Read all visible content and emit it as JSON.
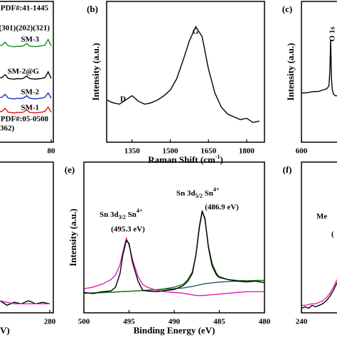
{
  "chart_data": [
    {
      "type": "line",
      "xlim": [
        10,
        80
      ],
      "xticks": [
        80
      ],
      "ylim": [
        0,
        100
      ],
      "x": [
        62,
        63,
        64,
        65,
        66,
        67,
        68,
        69,
        70,
        71,
        72,
        73,
        74,
        75,
        76,
        77,
        78,
        79,
        80
      ],
      "series": [
        {
          "name": "SM-3",
          "color": "#1a8a1a",
          "values": [
            68,
            68.5,
            69,
            71,
            68.5,
            68,
            67.8,
            68.2,
            68,
            68.5,
            70,
            68.3,
            68,
            67.9,
            68.2,
            68.5,
            69,
            73,
            68.4
          ]
        },
        {
          "name": "SM-2@G",
          "color": "#000000",
          "values": [
            45,
            45.5,
            46,
            48,
            45.3,
            45,
            44.8,
            45.2,
            45,
            45.4,
            47,
            45.2,
            45,
            44.8,
            45.1,
            45.3,
            46,
            50,
            45.2
          ]
        },
        {
          "name": "SM-2",
          "color": "#1f2bd6",
          "values": [
            31,
            31.4,
            32,
            34,
            31.3,
            31,
            30.8,
            31.2,
            31,
            31.4,
            33,
            31.2,
            31,
            30.8,
            31.1,
            31.3,
            32,
            35,
            31.2
          ]
        },
        {
          "name": "SM-1",
          "color": "#e01010",
          "values": [
            21,
            21.4,
            22,
            24,
            21.3,
            21,
            20.8,
            21.2,
            21,
            21.4,
            23,
            21.2,
            21,
            20.8,
            21.1,
            21.3,
            22,
            25,
            21.2
          ]
        }
      ],
      "annotations": [
        {
          "text": "PDF#:41-1445"
        },
        {
          "text": ")(301)(202)(321)"
        },
        {
          "text": "PDF#:05-0508"
        },
        {
          "text": "362)"
        }
      ]
    },
    {
      "type": "line",
      "panel_label": "(b)",
      "ylabel": "Intensity (a.u.)",
      "xlabel": {
        "parts": [
          "Raman Shift (cm",
          "-1",
          ")"
        ]
      },
      "xlim": [
        1250,
        1870
      ],
      "xticks": [
        1350,
        1500,
        1650,
        1800
      ],
      "ylim": [
        0,
        100
      ],
      "x": [
        1250,
        1275,
        1300,
        1325,
        1350,
        1375,
        1400,
        1425,
        1450,
        1475,
        1500,
        1525,
        1550,
        1575,
        1600,
        1625,
        1650,
        1675,
        1700,
        1725,
        1750,
        1775,
        1800,
        1825,
        1850
      ],
      "series": [
        {
          "color": "#000000",
          "values": [
            30,
            28,
            27,
            30,
            33,
            29,
            27,
            28,
            30,
            33,
            37,
            45,
            58,
            72,
            82,
            75,
            52,
            35,
            25,
            20,
            18,
            16,
            17,
            14,
            15
          ]
        }
      ],
      "annotations": [
        {
          "text": "D"
        },
        {
          "text": "G"
        }
      ]
    },
    {
      "type": "line",
      "panel_label": "(c)",
      "ylabel": "Intensity (a.u.)",
      "xlim": [
        600,
        516
      ],
      "xticks": [
        600
      ],
      "ylim": [
        0,
        100
      ],
      "x": [
        600,
        590,
        580,
        570,
        560,
        550,
        545,
        540,
        535,
        533,
        531,
        529,
        527,
        524,
        520,
        516
      ],
      "series": [
        {
          "color": "#000000",
          "values": [
            35,
            35,
            35.5,
            36,
            36,
            37,
            37.5,
            38,
            40,
            50,
            73,
            45,
            37,
            34,
            33,
            33
          ]
        }
      ],
      "annotations": [
        {
          "text": "O 1s"
        }
      ]
    },
    {
      "type": "line",
      "xlabel": {
        "parts": [
          "V)"
        ]
      },
      "xlim": [
        320,
        278
      ],
      "xticks": [
        280
      ],
      "ylim": [
        0,
        100
      ],
      "x": [
        320,
        316,
        312,
        308,
        304,
        300,
        296,
        292,
        288,
        284,
        280
      ],
      "series": [
        {
          "color": "#000000",
          "values": [
            7,
            9,
            6,
            8,
            5,
            7,
            6,
            8,
            6,
            7,
            6
          ]
        },
        {
          "color": "#e020c0",
          "values": [
            16,
            13,
            10,
            8,
            7,
            6,
            6,
            6,
            6,
            6,
            6
          ]
        }
      ],
      "annotations": []
    },
    {
      "type": "line",
      "panel_label": "(e)",
      "ylabel": "Intensity (a.u.)",
      "xlabel": {
        "parts": [
          "Binding Energy (eV)"
        ]
      },
      "xlim": [
        500,
        480
      ],
      "xticks": [
        500,
        495,
        490,
        485,
        480
      ],
      "ylim": [
        0,
        100
      ],
      "x": [
        500,
        499,
        498,
        497,
        496.5,
        496,
        495.7,
        495.3,
        495,
        494.6,
        494,
        493.5,
        493,
        492,
        491,
        490,
        489,
        488.5,
        488,
        487.6,
        487.2,
        486.9,
        486.6,
        486.2,
        485.8,
        485.3,
        485,
        484,
        483,
        482,
        481,
        480
      ],
      "series": [
        {
          "color": "#1f5f5f",
          "values": [
            13,
            13.2,
            13.4,
            13.6,
            13.8,
            14,
            14.1,
            14.2,
            14.3,
            14.4,
            14.6,
            14.8,
            15,
            15.3,
            15.7,
            16,
            16.5,
            17,
            17.5,
            18,
            18.5,
            19,
            19.3,
            19.6,
            19.9,
            20.2,
            20.4,
            20.8,
            21,
            21.2,
            21.4,
            21.5
          ]
        },
        {
          "color": "#e020c0",
          "values": [
            16,
            17,
            19,
            22,
            25,
            32,
            40,
            49.5,
            45,
            35,
            24,
            19,
            17,
            15,
            14,
            13.5,
            13,
            12.5,
            12,
            11.5,
            11.5,
            11.5,
            11.5,
            11.8,
            12,
            12.3,
            12.5,
            13,
            13.5,
            14,
            14,
            14
          ]
        },
        {
          "color": "#1a7a1a",
          "values": [
            13,
            13.2,
            13.4,
            13.6,
            13.8,
            14,
            14.1,
            14.2,
            14.3,
            14.4,
            14.6,
            14.8,
            15,
            15.3,
            16,
            17,
            19,
            22,
            27,
            38,
            58,
            68,
            62,
            44,
            33,
            26,
            24,
            22,
            21.5,
            21.3,
            21.4,
            21.5
          ]
        },
        {
          "color": "#000000",
          "values": [
            13.5,
            12.8,
            14,
            14.5,
            17,
            26,
            38,
            48,
            46,
            33,
            21,
            15,
            14.5,
            14,
            14.8,
            15.5,
            18,
            21,
            26,
            38,
            57,
            67,
            63,
            43,
            31,
            25,
            23.5,
            22,
            21,
            20.5,
            21,
            20
          ]
        }
      ],
      "annotations": [
        {
          "parts": [
            "Sn 3d",
            "3/2",
            " Sn",
            "4+"
          ]
        },
        {
          "text": "(495.3 eV)"
        },
        {
          "parts": [
            "Sn 3d",
            "5/2",
            " Sn",
            "4+"
          ]
        },
        {
          "text": "(486.9 eV)"
        }
      ]
    },
    {
      "type": "line",
      "panel_label": "(f)",
      "xlim": [
        240,
        220
      ],
      "xticks": [
        240
      ],
      "ylim": [
        0,
        100
      ],
      "x": [
        240,
        238,
        236,
        234,
        232,
        230,
        228,
        226,
        224,
        222,
        220
      ],
      "series": [
        {
          "color": "#e020c0",
          "values": [
            5,
            5,
            5.5,
            6,
            6,
            7,
            8,
            10,
            13,
            17,
            22
          ]
        },
        {
          "color": "#000000",
          "values": [
            3,
            4,
            3,
            5,
            4,
            5,
            6,
            8,
            11,
            15,
            20
          ]
        }
      ],
      "annotations": [
        {
          "text": "Me"
        },
        {
          "text": "("
        }
      ]
    }
  ]
}
